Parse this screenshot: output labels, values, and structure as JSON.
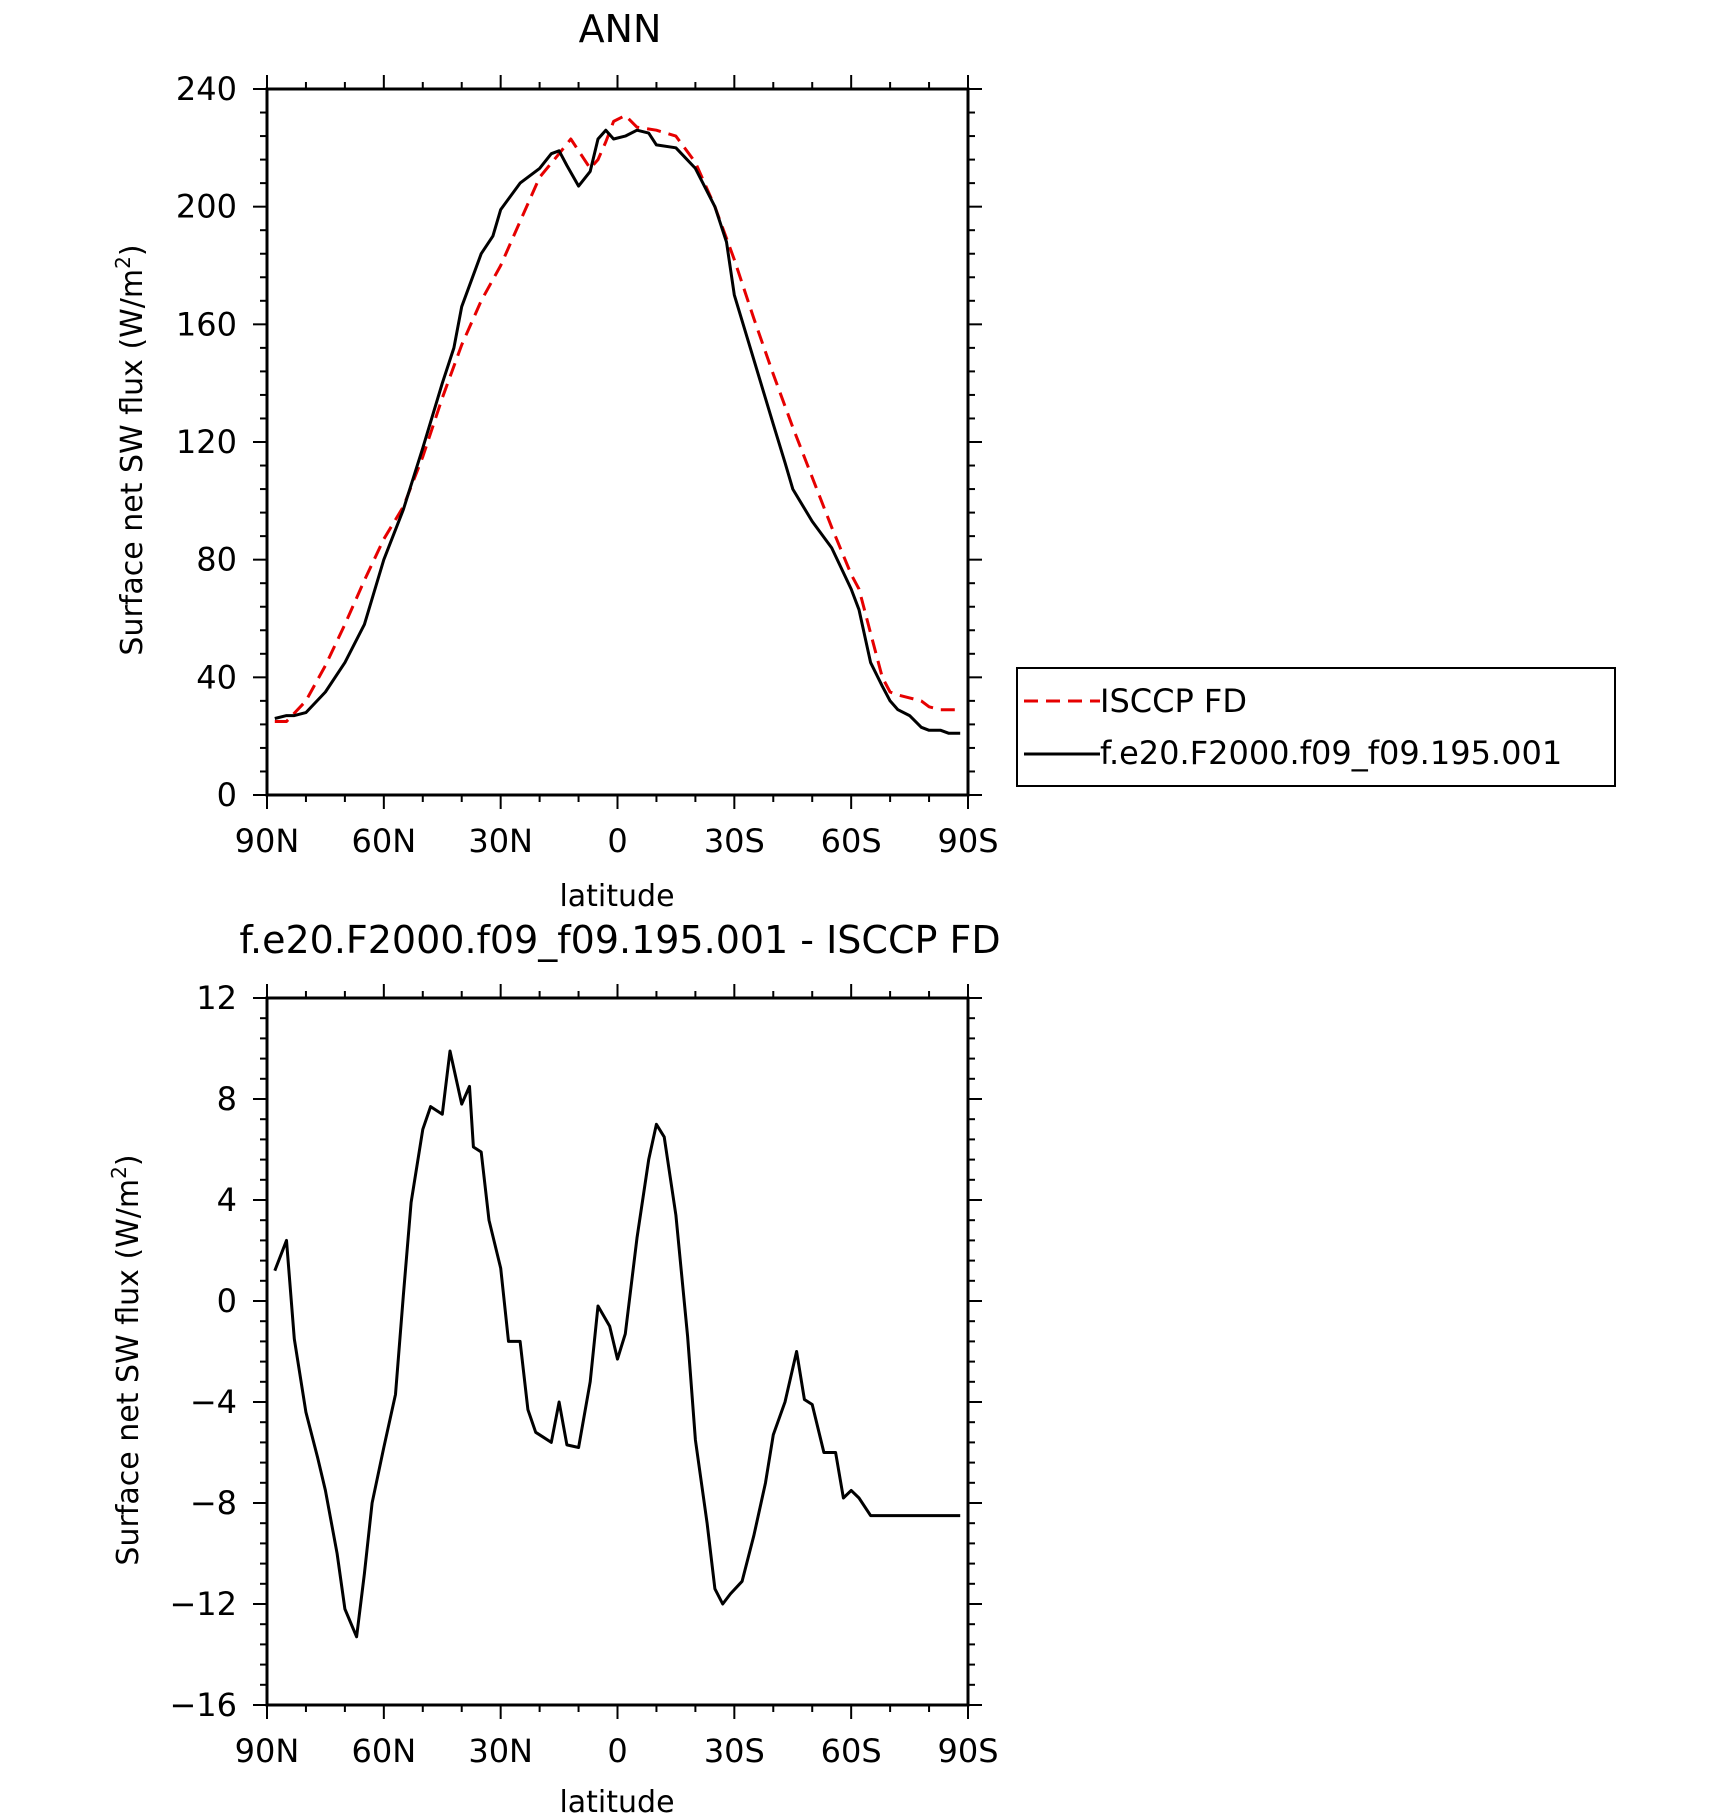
{
  "colors": {
    "model": "#000000",
    "observation": "#e60000",
    "frame": "#000000"
  },
  "legend": {
    "entries": [
      {
        "label": "ISCCP FD",
        "style": "dashed",
        "color": "#e60000"
      },
      {
        "label": "f.e20.F2000.f09_f09.195.001",
        "style": "solid",
        "color": "#000000"
      }
    ]
  },
  "chart_data": [
    {
      "type": "line",
      "title": "ANN",
      "xlabel": "latitude",
      "ylabel_main": "Surface net SW flux (W/m",
      "ylabel_sup": "2",
      "ylabel_tail": ")",
      "xlim": [
        90,
        -90
      ],
      "ylim": [
        0,
        240
      ],
      "x_ticks": [
        90,
        60,
        30,
        0,
        -30,
        -60,
        -90
      ],
      "x_tick_labels": [
        "90N",
        "60N",
        "30N",
        "0",
        "30S",
        "60S",
        "90S"
      ],
      "y_ticks": [
        0,
        40,
        80,
        120,
        160,
        200,
        240
      ],
      "y_tick_labels": [
        "0",
        "40",
        "80",
        "120",
        "160",
        "200",
        "240"
      ],
      "grid": false,
      "legend_position": "right",
      "series": [
        {
          "name": "ISCCP FD",
          "style": "dashed",
          "x": [
            88,
            85,
            80,
            75,
            70,
            65,
            60,
            55,
            50,
            45,
            40,
            35,
            30,
            25,
            20,
            15,
            12,
            10,
            7,
            5,
            3,
            1,
            -2,
            -5,
            -10,
            -15,
            -20,
            -25,
            -30,
            -35,
            -40,
            -45,
            -50,
            -55,
            -60,
            -62,
            -65,
            -68,
            -70,
            -72,
            -75,
            -78,
            -80,
            -83,
            -85,
            -88
          ],
          "y": [
            25,
            25,
            32,
            44,
            58,
            73,
            87,
            98,
            115,
            135,
            153,
            168,
            180,
            195,
            210,
            218,
            223,
            219,
            213,
            216,
            222,
            229,
            231,
            227,
            226,
            224,
            215,
            200,
            182,
            162,
            143,
            125,
            108,
            91,
            75,
            70,
            55,
            40,
            35,
            34,
            33,
            32,
            30,
            29,
            29,
            29
          ]
        },
        {
          "name": "f.e20.F2000.f09_f09.195.001",
          "style": "solid",
          "x": [
            88,
            85,
            83,
            80,
            75,
            70,
            65,
            60,
            55,
            50,
            45,
            42,
            40,
            35,
            32,
            30,
            25,
            20,
            17,
            15,
            13,
            10,
            7,
            5,
            3,
            1,
            -2,
            -5,
            -8,
            -10,
            -15,
            -20,
            -25,
            -28,
            -30,
            -35,
            -40,
            -43,
            -45,
            -50,
            -55,
            -60,
            -62,
            -65,
            -68,
            -70,
            -72,
            -75,
            -78,
            -80,
            -83,
            -85,
            -88
          ],
          "y": [
            26,
            27,
            27,
            28,
            35,
            45,
            58,
            80,
            97,
            118,
            140,
            152,
            166,
            184,
            190,
            199,
            208,
            213,
            218,
            219,
            214,
            207,
            212,
            223,
            226,
            223,
            224,
            226,
            225,
            221,
            220,
            213,
            200,
            188,
            170,
            148,
            126,
            113,
            104,
            93,
            84,
            70,
            63,
            45,
            37,
            32,
            29,
            27,
            23,
            22,
            22,
            21,
            21
          ]
        }
      ]
    },
    {
      "type": "line",
      "title": "f.e20.F2000.f09_f09.195.001 - ISCCP FD",
      "xlabel": "latitude",
      "ylabel_main": "Surface net SW flux (W/m",
      "ylabel_sup": "2",
      "ylabel_tail": ")",
      "xlim": [
        90,
        -90
      ],
      "ylim": [
        -16,
        12
      ],
      "x_ticks": [
        90,
        60,
        30,
        0,
        -30,
        -60,
        -90
      ],
      "x_tick_labels": [
        "90N",
        "60N",
        "30N",
        "0",
        "30S",
        "60S",
        "90S"
      ],
      "y_ticks": [
        -16,
        -12,
        -8,
        -4,
        0,
        4,
        8,
        12
      ],
      "y_tick_labels": [
        "−16",
        "−12",
        "−8",
        "−4",
        "0",
        "4",
        "8",
        "12"
      ],
      "grid": false,
      "series": [
        {
          "style": "solid",
          "x": [
            88,
            85,
            83,
            80,
            77,
            75,
            72,
            70,
            67,
            65,
            63,
            60,
            57,
            55,
            53,
            50,
            48,
            45,
            43,
            40,
            38,
            37,
            35,
            33,
            30,
            28,
            25,
            23,
            21,
            19,
            17,
            15,
            13,
            10,
            7,
            5,
            2,
            0,
            -2,
            -5,
            -8,
            -10,
            -12,
            -15,
            -18,
            -20,
            -23,
            -25,
            -27,
            -29,
            -32,
            -35,
            -38,
            -40,
            -43,
            -46,
            -48,
            -50,
            -53,
            -56,
            -58,
            -60,
            -62,
            -65,
            -68,
            -70,
            -72,
            -75,
            -77,
            -80,
            -82,
            -85,
            -88
          ],
          "y": [
            1.2,
            2.4,
            -1.5,
            -4.4,
            -6.2,
            -7.5,
            -10.0,
            -12.2,
            -13.3,
            -10.8,
            -8.0,
            -5.8,
            -3.7,
            0.2,
            3.9,
            6.8,
            7.7,
            7.4,
            9.9,
            7.8,
            8.5,
            6.1,
            5.9,
            3.2,
            1.3,
            -1.6,
            -1.6,
            -4.3,
            -5.2,
            -5.4,
            -5.6,
            -4.0,
            -5.7,
            -5.8,
            -3.2,
            -0.2,
            -1.0,
            -2.3,
            -1.3,
            2.5,
            5.6,
            7.0,
            6.5,
            3.4,
            -1.4,
            -5.5,
            -8.8,
            -11.4,
            -12.0,
            -11.6,
            -11.1,
            -9.3,
            -7.2,
            -5.3,
            -4.0,
            -2.0,
            -3.9,
            -4.1,
            -6.0,
            -6.0,
            -7.8,
            -7.5,
            -7.8,
            -8.5,
            -8.5,
            -8.5,
            -8.5,
            -8.5,
            -8.5,
            -8.5,
            -8.5,
            -8.5,
            -8.5
          ]
        }
      ]
    }
  ]
}
